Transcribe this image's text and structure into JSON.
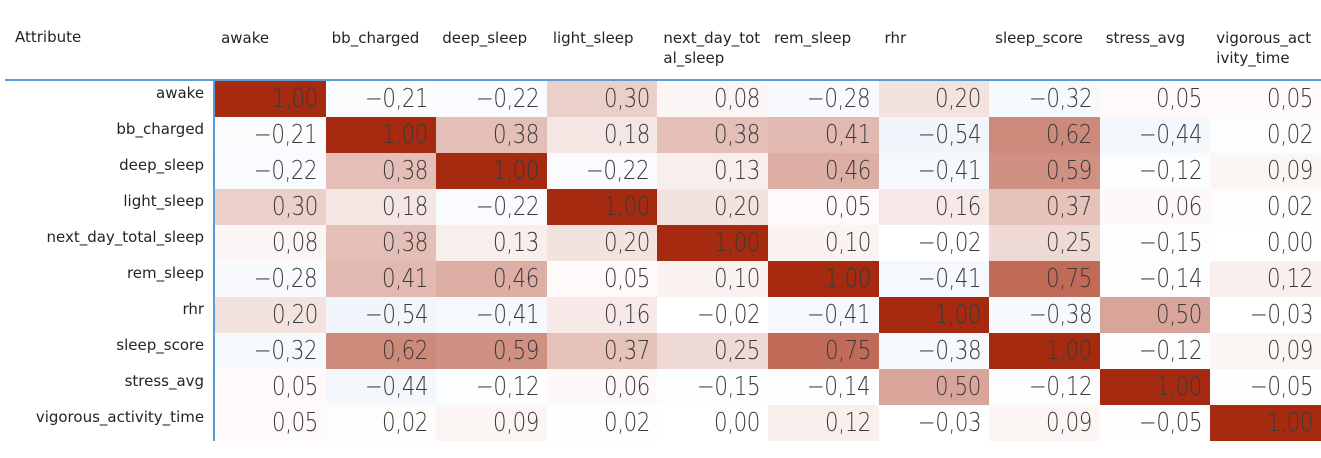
{
  "colors": {
    "heat_low": "#f2f6fc",
    "heat_zero": "#ffffff",
    "heat_high": "#a52a0f",
    "header_rule": "#5b9bd5"
  },
  "chart_data": {
    "type": "heatmap",
    "corner_label": "Attribute",
    "columns": [
      "awake",
      "bb_charged",
      "deep_sleep",
      "light_sleep",
      "next_day_total_sleep",
      "rem_sleep",
      "rhr",
      "sleep_score",
      "stress_avg",
      "vigorous_activity_time"
    ],
    "rows": [
      "awake",
      "bb_charged",
      "deep_sleep",
      "light_sleep",
      "next_day_total_sleep",
      "rem_sleep",
      "rhr",
      "sleep_score",
      "stress_avg",
      "vigorous_activity_time"
    ],
    "values": [
      [
        1.0,
        -0.21,
        -0.22,
        0.3,
        0.08,
        -0.28,
        0.2,
        -0.32,
        0.05,
        0.05
      ],
      [
        -0.21,
        1.0,
        0.38,
        0.18,
        0.38,
        0.41,
        -0.54,
        0.62,
        -0.44,
        0.02
      ],
      [
        -0.22,
        0.38,
        1.0,
        -0.22,
        0.13,
        0.46,
        -0.41,
        0.59,
        -0.12,
        0.09
      ],
      [
        0.3,
        0.18,
        -0.22,
        1.0,
        0.2,
        0.05,
        0.16,
        0.37,
        0.06,
        0.02
      ],
      [
        0.08,
        0.38,
        0.13,
        0.2,
        1.0,
        0.1,
        -0.02,
        0.25,
        -0.15,
        0.0
      ],
      [
        -0.28,
        0.41,
        0.46,
        0.05,
        0.1,
        1.0,
        -0.41,
        0.75,
        -0.14,
        0.12
      ],
      [
        0.2,
        -0.54,
        -0.41,
        0.16,
        -0.02,
        -0.41,
        1.0,
        -0.38,
        0.5,
        -0.03
      ],
      [
        -0.32,
        0.62,
        0.59,
        0.37,
        0.25,
        0.75,
        -0.38,
        1.0,
        -0.12,
        0.09
      ],
      [
        0.05,
        -0.44,
        -0.12,
        0.06,
        -0.15,
        -0.14,
        0.5,
        -0.12,
        1.0,
        -0.05
      ],
      [
        0.05,
        0.02,
        0.09,
        0.02,
        0.0,
        0.12,
        -0.03,
        0.09,
        -0.05,
        1.0
      ]
    ],
    "value_range": [
      -0.54,
      1.0
    ],
    "decimal_separator": ","
  }
}
